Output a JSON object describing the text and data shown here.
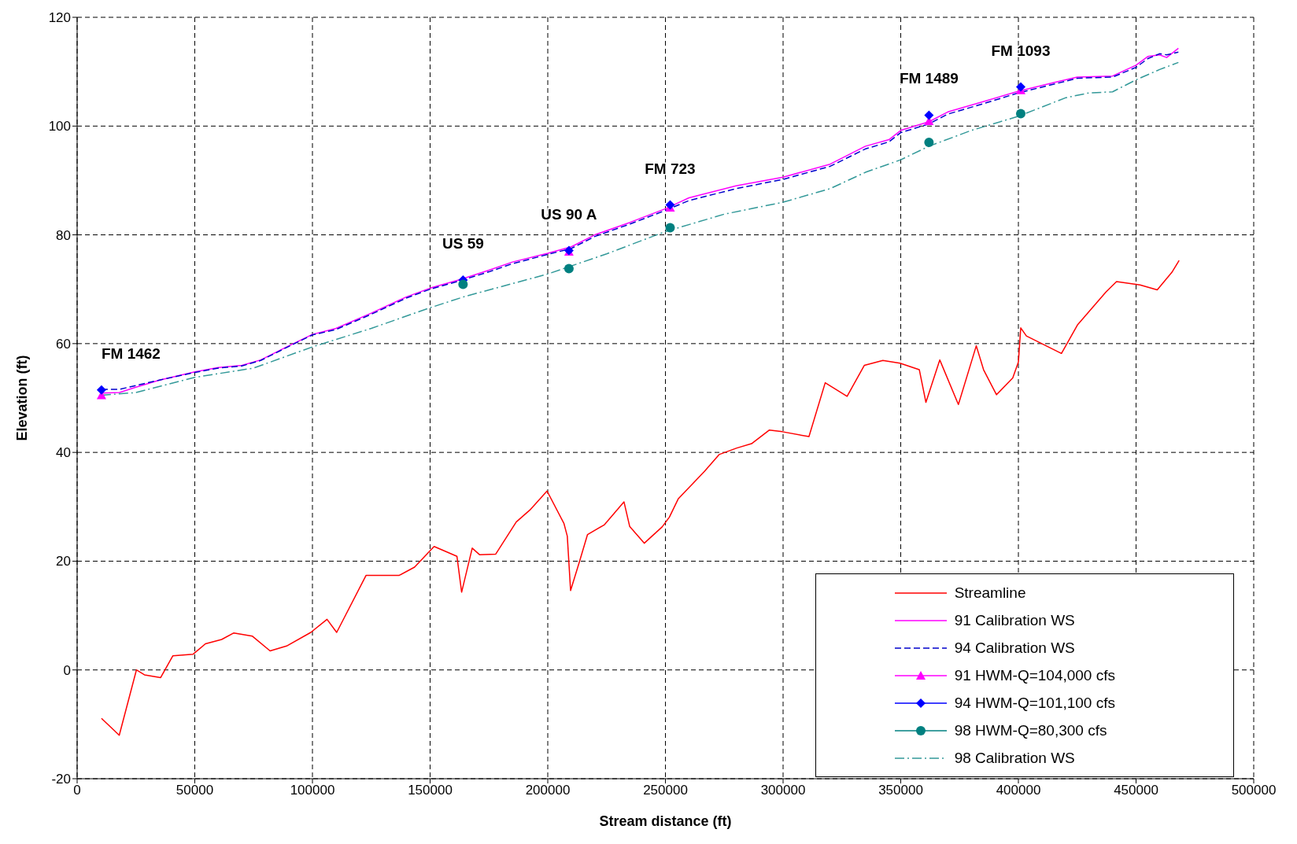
{
  "chart_data": {
    "type": "line",
    "xlabel": "Stream distance (ft)",
    "ylabel": "Elevation (ft)",
    "xlim": [
      0,
      500000
    ],
    "xticks": [
      0,
      50000,
      100000,
      150000,
      200000,
      250000,
      300000,
      350000,
      400000,
      450000,
      500000
    ],
    "ylim": [
      -20,
      120
    ],
    "yticks": [
      -20,
      0,
      20,
      40,
      60,
      80,
      100,
      120
    ],
    "grid": true,
    "legend": "bottom right",
    "series": [
      {
        "name": "Streamline",
        "color": "#ff0000",
        "line_style": "solid",
        "x": [
          10345,
          17900,
          25200,
          28600,
          35500,
          40700,
          49300,
          54500,
          61400,
          66600,
          74500,
          82000,
          89000,
          99300,
          106200,
          110300,
          122800,
          136900,
          143400,
          151700,
          161400,
          163400,
          167900,
          171000,
          177900,
          186600,
          192400,
          199700,
          206900,
          208300,
          209700,
          213400,
          216900,
          224100,
          232400,
          234800,
          241000,
          248600,
          251700,
          255500,
          266600,
          272800,
          280300,
          286600,
          294100,
          299700,
          311000,
          317900,
          327200,
          334500,
          342400,
          349700,
          357900,
          360700,
          366600,
          374500,
          382100,
          385200,
          390700,
          397600,
          400000,
          401000,
          403400,
          418300,
          425200,
          437200,
          441700,
          451700,
          459000,
          465200,
          468300
        ],
        "values": [
          -8.9,
          -12,
          0,
          -0.9,
          -1.4,
          2.6,
          2.9,
          4.8,
          5.6,
          6.8,
          6.2,
          3.5,
          4.4,
          6.9,
          9.3,
          6.9,
          17.4,
          17.4,
          18.9,
          22.7,
          20.9,
          14.3,
          22.4,
          21.2,
          21.3,
          27.2,
          29.4,
          32.9,
          26.9,
          24.6,
          14.6,
          19.8,
          24.9,
          26.7,
          30.9,
          26.4,
          23.3,
          26.3,
          28.1,
          31.5,
          36.5,
          39.6,
          40.8,
          41.6,
          44.1,
          43.8,
          42.9,
          52.8,
          50.3,
          56.0,
          56.9,
          56.4,
          55.2,
          49.2,
          57.0,
          48.8,
          59.6,
          55.2,
          50.6,
          53.7,
          56.6,
          62.9,
          61.4,
          58.2,
          63.5,
          69.5,
          71.4,
          70.8,
          69.9,
          73.1,
          75.3
        ]
      },
      {
        "name": "91 Calibration  WS",
        "color": "#ff00ff",
        "line_style": "solid",
        "x": [
          10345,
          18000,
          25000,
          35000,
          50000,
          60000,
          70000,
          78000,
          90000,
          100000,
          110000,
          125000,
          140000,
          150000,
          163000,
          175000,
          185000,
          200000,
          210000,
          220000,
          235000,
          250000,
          260000,
          280000,
          300000,
          320000,
          335000,
          345000,
          350000,
          362000,
          370000,
          385000,
          400000,
          415000,
          425000,
          440000,
          450000,
          455000,
          460000,
          463000,
          468000
        ],
        "values": [
          50.9,
          51.0,
          52.0,
          53.3,
          54.8,
          55.6,
          56.0,
          57.0,
          59.6,
          61.7,
          62.8,
          65.6,
          68.6,
          70.2,
          71.8,
          73.5,
          75.0,
          76.6,
          77.8,
          80.0,
          82.3,
          84.8,
          86.8,
          89.0,
          90.6,
          93.0,
          96.3,
          97.5,
          99.2,
          100.8,
          102.6,
          104.5,
          106.4,
          108.0,
          109.0,
          109.2,
          111.2,
          112.8,
          113.1,
          112.6,
          114.3
        ]
      },
      {
        "name": "94 Calibration  WS",
        "color": "#0000cc",
        "line_style": "dashed",
        "x": [
          10345,
          18000,
          25000,
          35000,
          50000,
          60000,
          70000,
          78000,
          90000,
          100000,
          110000,
          125000,
          140000,
          150000,
          163000,
          175000,
          185000,
          200000,
          210000,
          220000,
          235000,
          250000,
          260000,
          280000,
          300000,
          320000,
          335000,
          345000,
          350000,
          362000,
          370000,
          385000,
          400000,
          415000,
          425000,
          440000,
          450000,
          455000,
          460000,
          463000,
          468000
        ],
        "values": [
          51.6,
          51.6,
          52.3,
          53.3,
          54.7,
          55.5,
          55.9,
          56.9,
          59.5,
          61.6,
          62.6,
          65.4,
          68.4,
          70.0,
          71.6,
          73.2,
          74.7,
          76.4,
          77.5,
          79.7,
          82.0,
          84.5,
          86.3,
          88.5,
          90.2,
          92.6,
          95.8,
          97.1,
          98.8,
          100.4,
          102.2,
          104.1,
          106.1,
          107.7,
          108.8,
          109.0,
          110.8,
          112.4,
          113.3,
          113.1,
          113.6
        ]
      },
      {
        "name": "91 HWM-Q=104,000  cfs",
        "color": "#ff00ff",
        "type": "scatter",
        "marker": "triangle",
        "x": [
          10345,
          209000,
          252000,
          362000,
          401000
        ],
        "values": [
          50.5,
          76.9,
          85.0,
          100.9,
          106.6
        ]
      },
      {
        "name": "94 HWM-Q=101,100  cfs",
        "color": "#0000ff",
        "type": "scatter",
        "marker": "diamond",
        "x": [
          10345,
          164000,
          209000,
          252000,
          362000,
          401000
        ],
        "values": [
          51.5,
          71.7,
          77.1,
          85.5,
          102.0,
          107.2
        ]
      },
      {
        "name": "98 HWM-Q=80,300  cfs",
        "color": "#008080",
        "type": "scatter",
        "marker": "circle",
        "x": [
          164000,
          209000,
          252000,
          362000,
          401000
        ],
        "values": [
          70.9,
          73.8,
          81.3,
          97.0,
          102.3
        ]
      },
      {
        "name": "98 Calibration  WS",
        "color": "#339999",
        "line_style": "dashdot",
        "x": [
          10345,
          25000,
          50000,
          75000,
          100000,
          125000,
          150000,
          165000,
          200000,
          225000,
          250000,
          275000,
          300000,
          320000,
          335000,
          350000,
          362000,
          380000,
          400000,
          420000,
          430000,
          440000,
          450000,
          460000,
          468000
        ],
        "values": [
          50.5,
          51.0,
          53.8,
          55.5,
          59.4,
          62.8,
          66.6,
          68.7,
          72.8,
          76.5,
          80.6,
          83.8,
          86.0,
          88.5,
          91.5,
          93.8,
          96.3,
          99.2,
          101.8,
          105.2,
          106.1,
          106.3,
          108.5,
          110.4,
          111.7
        ]
      }
    ],
    "annotations": [
      {
        "text": "FM 1462",
        "x": 10345,
        "y": 51.5
      },
      {
        "text": "US 59",
        "x": 164000,
        "y": 71.7
      },
      {
        "text": "US 90  A",
        "x": 209000,
        "y": 77.1
      },
      {
        "text": "FM 723",
        "x": 252000,
        "y": 85.5
      },
      {
        "text": "FM 1489",
        "x": 362000,
        "y": 102.0
      },
      {
        "text": "FM 1093",
        "x": 401000,
        "y": 107.2
      }
    ]
  }
}
